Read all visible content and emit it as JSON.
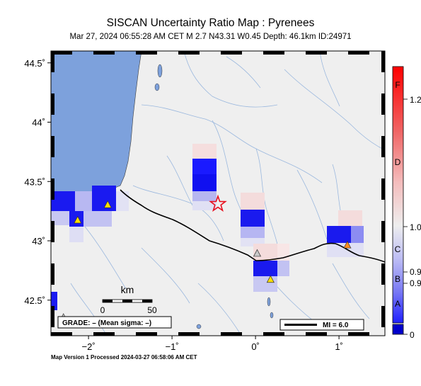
{
  "header": {
    "title": "SISCAN Uncertainty Ratio Map : Pyrenees",
    "subtitle": "Mar 27, 2024 06:55:28 AM CET   M 2.7   N43.31 W0.45   Depth: 46.1km   ID:24971"
  },
  "footer": {
    "text": "Map Version 1 Processed 2024-03-27 06:58:06 AM CET"
  },
  "map": {
    "lon_range": [
      -2.45,
      1.55
    ],
    "lat_range": [
      42.2,
      44.6
    ],
    "lat_ticks": [
      {
        "value": 44.5,
        "label": "44.5˚"
      },
      {
        "value": 44.0,
        "label": "44˚"
      },
      {
        "value": 43.5,
        "label": "43.5˚"
      },
      {
        "value": 43.0,
        "label": "43˚"
      },
      {
        "value": 42.5,
        "label": "42.5˚"
      }
    ],
    "lon_ticks": [
      {
        "value": -2,
        "label": "−2˚"
      },
      {
        "value": -1,
        "label": "−1˚"
      },
      {
        "value": 0,
        "label": "0˚"
      },
      {
        "value": 1,
        "label": "1˚"
      }
    ],
    "colors": {
      "land": "#efefef",
      "sea": "#7da1dc",
      "rivers": "#9bb8de",
      "border": "#000000"
    },
    "epicenter": {
      "lon": -0.45,
      "lat": 43.31
    },
    "stations": [
      {
        "lon": -1.77,
        "lat": 43.3,
        "color": "#ffe000"
      },
      {
        "lon": -2.13,
        "lat": 43.17,
        "color": "#ffe000"
      },
      {
        "lon": 0.18,
        "lat": 42.67,
        "color": "#ffe000"
      },
      {
        "lon": 1.1,
        "lat": 42.96,
        "color": "#ff8c20"
      },
      {
        "lon": 0.02,
        "lat": 42.89,
        "color": "#c8c8c8"
      },
      {
        "lon": -2.3,
        "lat": 42.35,
        "color": "#c8c8c8"
      }
    ],
    "ratio_cells": [
      {
        "lon": -0.5,
        "lat": 43.4,
        "value": 0.9
      }
    ]
  },
  "scalebar": {
    "title": "km",
    "min_label": "0",
    "max_label": "50"
  },
  "grade_box": {
    "text": "GRADE: – (Mean sigma: –)"
  },
  "mi_box": {
    "text": "MI = 6.0"
  },
  "colorbar": {
    "grades": [
      "F",
      "D",
      "C",
      "B",
      "A"
    ],
    "values": [
      "1.2",
      "1.0",
      "0.9",
      "0.9",
      "0"
    ]
  }
}
